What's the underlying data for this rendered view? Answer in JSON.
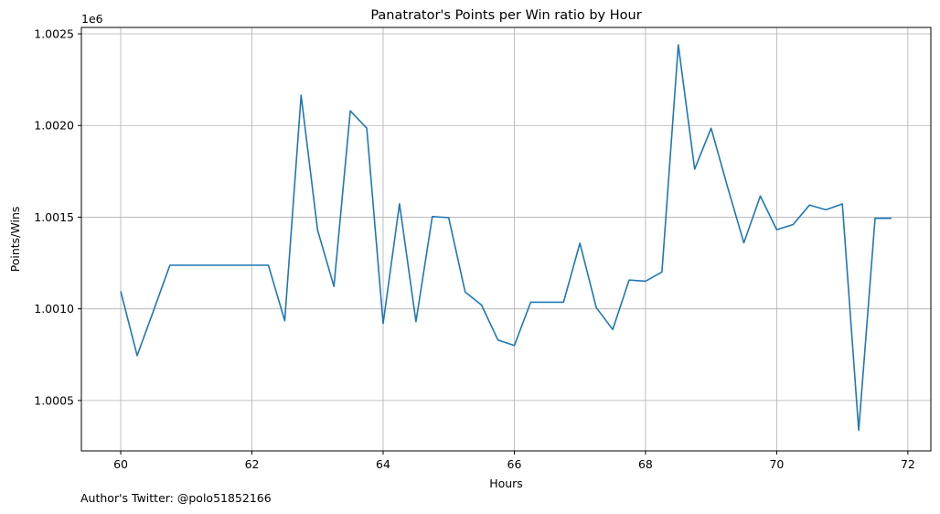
{
  "footer": {
    "twitter_note": "Author's Twitter: @polo51852166"
  },
  "chart_data": {
    "type": "line",
    "title": "Panatrator's Points per Win ratio by Hour",
    "xlabel": "Hours",
    "ylabel": "Points/Wins",
    "y_offset_label": "1e6",
    "xlim": [
      59.4,
      72.35
    ],
    "ylim": [
      1000225,
      1002535
    ],
    "x_ticks": [
      60,
      62,
      64,
      66,
      68,
      70,
      72
    ],
    "x_tick_labels": [
      "60",
      "62",
      "64",
      "66",
      "68",
      "70",
      "72"
    ],
    "y_ticks": [
      1000500,
      1001000,
      1001500,
      1002000,
      1002500
    ],
    "y_tick_labels": [
      "1.0005",
      "1.0010",
      "1.0015",
      "1.0020",
      "1.0025"
    ],
    "grid": true,
    "color": "#1f77b4",
    "series": [
      {
        "x": [
          60.0,
          60.25,
          60.5,
          60.75,
          61.0,
          61.25,
          61.5,
          61.75,
          62.0,
          62.25,
          62.5,
          62.75,
          63.0,
          63.25,
          63.5,
          63.75,
          64.0,
          64.25,
          64.5,
          64.75,
          65.0,
          65.25,
          65.5,
          65.75,
          66.0,
          66.25,
          66.5,
          66.75,
          67.0,
          67.25,
          67.5,
          67.75,
          68.0,
          68.25,
          68.5,
          68.75,
          69.0,
          69.25,
          69.5,
          69.75,
          70.0,
          70.25,
          70.5,
          70.75,
          71.0,
          71.25,
          71.5,
          71.75
        ],
        "values": [
          1001095,
          1000745,
          1000990,
          1001238,
          1001238,
          1001238,
          1001238,
          1001238,
          1001238,
          1001238,
          1000935,
          1002165,
          1001430,
          1001122,
          1002080,
          1001985,
          1000920,
          1001573,
          1000930,
          1001503,
          1001497,
          1001092,
          1001021,
          1000830,
          1000800,
          1001036,
          1001036,
          1001036,
          1001358,
          1001007,
          1000887,
          1001157,
          1001151,
          1001201,
          1002440,
          1001762,
          1001985,
          1001666,
          1001360,
          1001615,
          1001432,
          1001460,
          1001566,
          1001540,
          1001572,
          1000337,
          1001494,
          1001494
        ]
      }
    ]
  }
}
